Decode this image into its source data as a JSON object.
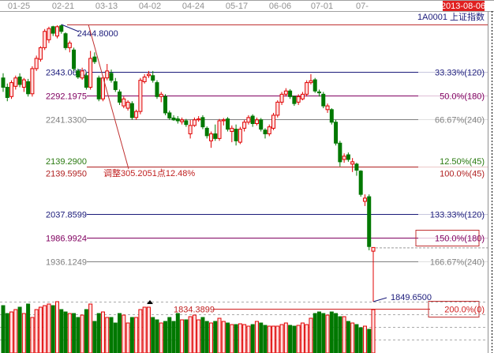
{
  "header": {
    "dates": [
      "01-25",
      "02-21",
      "03-13",
      "04-02",
      "04-24",
      "05-17",
      "06-06",
      "07-01",
      "07-"
    ],
    "current_date": "2013-08-06",
    "symbol": "1A0001",
    "name": "上证指数"
  },
  "colors": {
    "up": "#e00000",
    "up_fill": "#ffe0e0",
    "down": "#007800",
    "level_navy": "#1a1a7a",
    "level_purple": "#800060",
    "level_gray": "#808080",
    "level_red": "#b02020",
    "green_text": "#2a7a10"
  },
  "annotations": {
    "high_label": "2444.8000",
    "low_label": "1849.6500",
    "adjust_label": "调整305.2051点12.48%",
    "green_overlap_label": "2139.2900",
    "green_overlap_pct": "12.50%(45)"
  },
  "chart_data": {
    "type": "candlestick",
    "title": "",
    "high": 2444.8,
    "low": 1849.65,
    "ylim": [
      1834.3899,
      2444.8
    ],
    "levels": [
      {
        "price": 2343.065,
        "label": "2343.0650",
        "pct": "33.33%(120)",
        "color": "#1a1a7a"
      },
      {
        "price": 2292.1975,
        "label": "2292.1975",
        "pct": "50.0%(180)",
        "color": "#800060"
      },
      {
        "price": 2241.33,
        "label": "2241.3300",
        "pct": "66.67%(240)",
        "color": "#808080"
      },
      {
        "price": 2139.595,
        "label": "2139.5950",
        "pct": "100.0%(45)",
        "color": "#b02020"
      },
      {
        "price": 2037.8599,
        "label": "2037.8599",
        "pct": "133.33%(120)",
        "color": "#1a1a7a"
      },
      {
        "price": 1986.9924,
        "label": "1986.9924",
        "pct": "150.0%(180)",
        "color": "#800060",
        "boxed": true
      },
      {
        "price": 1936.1249,
        "label": "1936.1249",
        "pct": "166.67%(240)",
        "color": "#808080"
      },
      {
        "price": 1834.3899,
        "label": "1834.3899",
        "pct": "200.0%(0)",
        "color": "#d02020",
        "boxed": true
      }
    ],
    "candles": [
      [
        2330,
        2340,
        2300,
        2310
      ],
      [
        2310,
        2318,
        2280,
        2288
      ],
      [
        2290,
        2325,
        2285,
        2320
      ],
      [
        2312,
        2335,
        2305,
        2330
      ],
      [
        2332,
        2340,
        2310,
        2316
      ],
      [
        2310,
        2330,
        2300,
        2326
      ],
      [
        2322,
        2328,
        2290,
        2296
      ],
      [
        2296,
        2355,
        2290,
        2350
      ],
      [
        2350,
        2378,
        2345,
        2372
      ],
      [
        2370,
        2398,
        2365,
        2395
      ],
      [
        2395,
        2435,
        2390,
        2430
      ],
      [
        2412,
        2440,
        2405,
        2436
      ],
      [
        2440,
        2442,
        2420,
        2426
      ],
      [
        2420,
        2443,
        2415,
        2440
      ],
      [
        2442,
        2444.8,
        2425,
        2430
      ],
      [
        2425,
        2428,
        2390,
        2395
      ],
      [
        2395,
        2410,
        2385,
        2405
      ],
      [
        2390,
        2395,
        2345,
        2350
      ],
      [
        2345,
        2350,
        2328,
        2332
      ],
      [
        2330,
        2352,
        2326,
        2345
      ],
      [
        2335,
        2342,
        2305,
        2310
      ],
      [
        2310,
        2388,
        2305,
        2372
      ],
      [
        2375,
        2385,
        2360,
        2365
      ],
      [
        2330,
        2335,
        2280,
        2285
      ],
      [
        2285,
        2335,
        2280,
        2330
      ],
      [
        2330,
        2360,
        2325,
        2345
      ],
      [
        2340,
        2348,
        2320,
        2325
      ],
      [
        2322,
        2330,
        2300,
        2305
      ],
      [
        2300,
        2305,
        2272,
        2278
      ],
      [
        2270,
        2290,
        2265,
        2285
      ],
      [
        2265,
        2282,
        2260,
        2278
      ],
      [
        2275,
        2280,
        2240,
        2245
      ],
      [
        2245,
        2262,
        2240,
        2258
      ],
      [
        2258,
        2330,
        2252,
        2325
      ],
      [
        2322,
        2338,
        2318,
        2332
      ],
      [
        2335,
        2345,
        2330,
        2338
      ],
      [
        2335,
        2345,
        2320,
        2325
      ],
      [
        2320,
        2325,
        2285,
        2290
      ],
      [
        2290,
        2300,
        2278,
        2295
      ],
      [
        2290,
        2295,
        2250,
        2255
      ],
      [
        2255,
        2260,
        2240,
        2244
      ],
      [
        2244,
        2250,
        2238,
        2240
      ],
      [
        2242,
        2248,
        2232,
        2238
      ],
      [
        2236,
        2245,
        2230,
        2240
      ],
      [
        2238,
        2242,
        2225,
        2230
      ],
      [
        2210,
        2240,
        2200,
        2228
      ],
      [
        2228,
        2245,
        2225,
        2240
      ],
      [
        2240,
        2248,
        2236,
        2242
      ],
      [
        2245,
        2250,
        2220,
        2225
      ],
      [
        2222,
        2226,
        2200,
        2206
      ],
      [
        2195,
        2215,
        2180,
        2210
      ],
      [
        2210,
        2230,
        2195,
        2200
      ],
      [
        2200,
        2242,
        2195,
        2238
      ],
      [
        2238,
        2244,
        2228,
        2240
      ],
      [
        2242,
        2246,
        2215,
        2220
      ],
      [
        2215,
        2228,
        2192,
        2222
      ],
      [
        2220,
        2230,
        2185,
        2195
      ],
      [
        2192,
        2225,
        2188,
        2220
      ],
      [
        2222,
        2240,
        2215,
        2235
      ],
      [
        2235,
        2250,
        2230,
        2245
      ],
      [
        2248,
        2252,
        2225,
        2232
      ],
      [
        2232,
        2245,
        2228,
        2240
      ],
      [
        2240,
        2244,
        2215,
        2220
      ],
      [
        2218,
        2222,
        2200,
        2210
      ],
      [
        2210,
        2230,
        2205,
        2225
      ],
      [
        2222,
        2255,
        2218,
        2250
      ],
      [
        2250,
        2282,
        2245,
        2278
      ],
      [
        2278,
        2300,
        2272,
        2295
      ],
      [
        2295,
        2308,
        2290,
        2302
      ],
      [
        2302,
        2306,
        2285,
        2290
      ],
      [
        2290,
        2292,
        2270,
        2275
      ],
      [
        2278,
        2295,
        2272,
        2290
      ],
      [
        2285,
        2300,
        2282,
        2295
      ],
      [
        2295,
        2325,
        2290,
        2320
      ],
      [
        2320,
        2338,
        2316,
        2324
      ],
      [
        2326,
        2330,
        2298,
        2302
      ],
      [
        2300,
        2305,
        2290,
        2298
      ],
      [
        2295,
        2300,
        2265,
        2270
      ],
      [
        2262,
        2275,
        2255,
        2270
      ],
      [
        2262,
        2265,
        2230,
        2235
      ],
      [
        2235,
        2240,
        2185,
        2190
      ],
      [
        2190,
        2195,
        2140,
        2150
      ],
      [
        2155,
        2168,
        2148,
        2162
      ],
      [
        2165,
        2170,
        2150,
        2155
      ],
      [
        2145,
        2158,
        2128,
        2150
      ],
      [
        2145,
        2148,
        2120,
        2132
      ],
      [
        2130,
        2132,
        2075,
        2080
      ],
      [
        2065,
        2080,
        2055,
        2072
      ],
      [
        2075,
        2080,
        1960,
        1968
      ],
      [
        1958,
        1965,
        1849.65,
        1966
      ]
    ],
    "volume": [
      60,
      50,
      52,
      55,
      58,
      50,
      62,
      45,
      55,
      58,
      60,
      62,
      60,
      65,
      55,
      52,
      50,
      50,
      45,
      48,
      55,
      62,
      40,
      50,
      52,
      45,
      45,
      38,
      50,
      48,
      38,
      45,
      45,
      55,
      58,
      58,
      45,
      42,
      38,
      40,
      45,
      40,
      50,
      42,
      42,
      46,
      48,
      42,
      45,
      40,
      38,
      40,
      44,
      40,
      38,
      36,
      36,
      37,
      36,
      34,
      36,
      40,
      38,
      35,
      34,
      34,
      34,
      36,
      38,
      35,
      34,
      35,
      38,
      36,
      44,
      50,
      52,
      50,
      48,
      52,
      50,
      46,
      46,
      40,
      38,
      36,
      32,
      34,
      30,
      55
    ],
    "volume_last_up": true
  }
}
